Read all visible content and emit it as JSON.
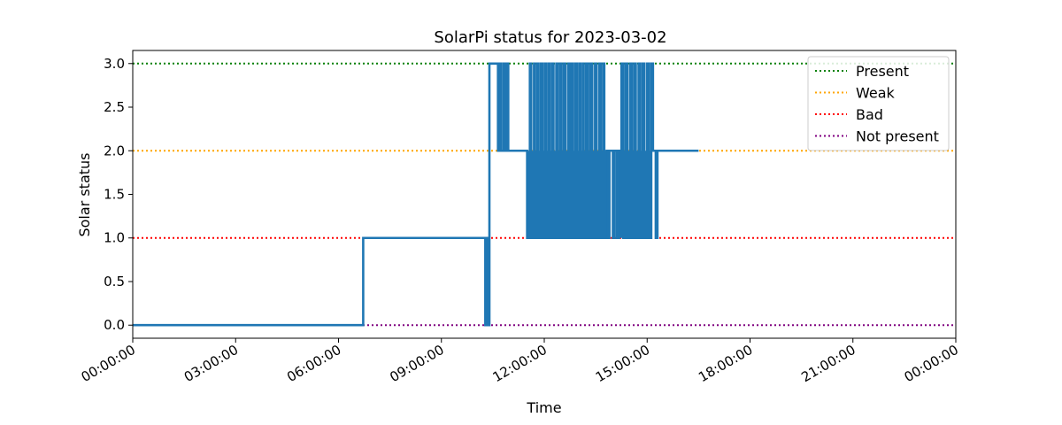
{
  "chart_data": {
    "type": "line",
    "title": "SolarPi status for 2023-03-02",
    "xlabel": "Time",
    "ylabel": "Solar status",
    "x_unit": "hours",
    "xlim": [
      0,
      24
    ],
    "ylim": [
      -0.15,
      3.15
    ],
    "yticks": [
      0.0,
      0.5,
      1.0,
      1.5,
      2.0,
      2.5,
      3.0
    ],
    "ytick_labels": [
      "0.0",
      "0.5",
      "1.0",
      "1.5",
      "2.0",
      "2.5",
      "3.0"
    ],
    "xticks": [
      0,
      3,
      6,
      9,
      12,
      15,
      18,
      21,
      24
    ],
    "xtick_labels": [
      "00:00:00",
      "03:00:00",
      "06:00:00",
      "09:00:00",
      "12:00:00",
      "15:00:00",
      "18:00:00",
      "21:00:00",
      "00:00:00"
    ],
    "grid": false,
    "legend_position": "top-right",
    "reference_lines": [
      {
        "name": "Present",
        "y": 3,
        "color": "#008000"
      },
      {
        "name": "Weak",
        "y": 2,
        "color": "#FFA500"
      },
      {
        "name": "Bad",
        "y": 1,
        "color": "#FF0000"
      },
      {
        "name": "Not present",
        "y": 0,
        "color": "#800080"
      }
    ],
    "series": [
      {
        "color": "#1f77b4",
        "points": [
          [
            0,
            0
          ],
          [
            6.72,
            0
          ],
          [
            6.72,
            1
          ],
          [
            10.28,
            1
          ],
          [
            10.28,
            0
          ],
          [
            10.33,
            0
          ],
          [
            10.33,
            1
          ],
          [
            10.35,
            1
          ],
          [
            10.35,
            0
          ],
          [
            10.4,
            0
          ],
          [
            10.4,
            3
          ],
          [
            10.65,
            3
          ],
          [
            10.65,
            2
          ],
          [
            10.7,
            2
          ],
          [
            10.7,
            3
          ],
          [
            10.75,
            3
          ],
          [
            10.75,
            2
          ],
          [
            10.82,
            2
          ],
          [
            10.82,
            3
          ],
          [
            10.87,
            3
          ],
          [
            10.87,
            2
          ],
          [
            10.9,
            2
          ],
          [
            10.9,
            3
          ],
          [
            10.95,
            3
          ],
          [
            10.95,
            2
          ],
          [
            11.5,
            2
          ],
          [
            11.5,
            1
          ],
          [
            11.58,
            1
          ],
          [
            11.58,
            3
          ],
          [
            11.62,
            3
          ],
          [
            11.62,
            1
          ],
          [
            11.7,
            1
          ],
          [
            11.7,
            3
          ],
          [
            11.73,
            3
          ],
          [
            11.73,
            1
          ],
          [
            11.8,
            1
          ],
          [
            11.8,
            3
          ],
          [
            11.83,
            3
          ],
          [
            11.83,
            1
          ],
          [
            11.9,
            1
          ],
          [
            11.9,
            3
          ],
          [
            11.95,
            3
          ],
          [
            11.95,
            1
          ],
          [
            12.02,
            1
          ],
          [
            12.02,
            3
          ],
          [
            12.05,
            3
          ],
          [
            12.05,
            1
          ],
          [
            12.12,
            1
          ],
          [
            12.12,
            3
          ],
          [
            12.15,
            3
          ],
          [
            12.15,
            1
          ],
          [
            12.22,
            1
          ],
          [
            12.22,
            3
          ],
          [
            12.27,
            3
          ],
          [
            12.27,
            1
          ],
          [
            12.35,
            1
          ],
          [
            12.35,
            3
          ],
          [
            12.38,
            3
          ],
          [
            12.38,
            1
          ],
          [
            12.45,
            1
          ],
          [
            12.45,
            3
          ],
          [
            12.5,
            3
          ],
          [
            12.5,
            1
          ],
          [
            12.57,
            1
          ],
          [
            12.57,
            3
          ],
          [
            12.62,
            3
          ],
          [
            12.62,
            1
          ],
          [
            12.7,
            1
          ],
          [
            12.7,
            3
          ],
          [
            12.75,
            3
          ],
          [
            12.75,
            1
          ],
          [
            12.8,
            1
          ],
          [
            12.8,
            3
          ],
          [
            12.83,
            3
          ],
          [
            12.83,
            1
          ],
          [
            12.9,
            1
          ],
          [
            12.9,
            3
          ],
          [
            12.95,
            3
          ],
          [
            12.95,
            1
          ],
          [
            13.02,
            1
          ],
          [
            13.02,
            3
          ],
          [
            13.05,
            3
          ],
          [
            13.05,
            1
          ],
          [
            13.12,
            1
          ],
          [
            13.12,
            3
          ],
          [
            13.15,
            3
          ],
          [
            13.15,
            1
          ],
          [
            13.22,
            1
          ],
          [
            13.22,
            3
          ],
          [
            13.28,
            3
          ],
          [
            13.28,
            1
          ],
          [
            13.35,
            1
          ],
          [
            13.35,
            3
          ],
          [
            13.4,
            3
          ],
          [
            13.4,
            1
          ],
          [
            13.48,
            1
          ],
          [
            13.48,
            3
          ],
          [
            13.52,
            3
          ],
          [
            13.52,
            1
          ],
          [
            13.6,
            1
          ],
          [
            13.6,
            3
          ],
          [
            13.65,
            3
          ],
          [
            13.65,
            1
          ],
          [
            13.72,
            1
          ],
          [
            13.72,
            3
          ],
          [
            13.75,
            3
          ],
          [
            13.75,
            1
          ],
          [
            13.82,
            1
          ],
          [
            13.82,
            2
          ],
          [
            13.85,
            2
          ],
          [
            13.85,
            1
          ],
          [
            13.9,
            1
          ],
          [
            13.9,
            2
          ],
          [
            14.0,
            2
          ],
          [
            14.0,
            1
          ],
          [
            14.05,
            1
          ],
          [
            14.05,
            2
          ],
          [
            14.12,
            2
          ],
          [
            14.12,
            1
          ],
          [
            14.18,
            1
          ],
          [
            14.18,
            2
          ],
          [
            14.25,
            2
          ],
          [
            14.25,
            3
          ],
          [
            14.3,
            3
          ],
          [
            14.3,
            1
          ],
          [
            14.37,
            1
          ],
          [
            14.37,
            3
          ],
          [
            14.42,
            3
          ],
          [
            14.42,
            1
          ],
          [
            14.5,
            1
          ],
          [
            14.5,
            3
          ],
          [
            14.55,
            3
          ],
          [
            14.55,
            1
          ],
          [
            14.62,
            1
          ],
          [
            14.62,
            3
          ],
          [
            14.67,
            3
          ],
          [
            14.67,
            1
          ],
          [
            14.75,
            1
          ],
          [
            14.75,
            3
          ],
          [
            14.8,
            3
          ],
          [
            14.8,
            1
          ],
          [
            14.87,
            1
          ],
          [
            14.87,
            3
          ],
          [
            14.92,
            3
          ],
          [
            14.92,
            1
          ],
          [
            15.0,
            1
          ],
          [
            15.0,
            3
          ],
          [
            15.05,
            3
          ],
          [
            15.05,
            1
          ],
          [
            15.12,
            1
          ],
          [
            15.12,
            3
          ],
          [
            15.17,
            3
          ],
          [
            15.17,
            2
          ],
          [
            15.25,
            2
          ],
          [
            15.25,
            1
          ],
          [
            15.3,
            1
          ],
          [
            15.3,
            2
          ],
          [
            16.5,
            2
          ]
        ]
      }
    ]
  }
}
